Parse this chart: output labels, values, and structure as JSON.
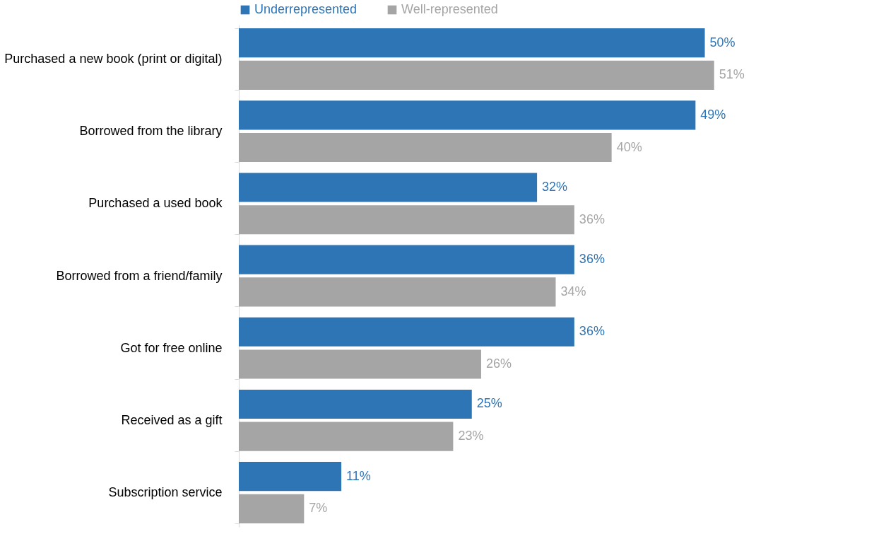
{
  "chart_data": {
    "type": "bar",
    "orientation": "horizontal",
    "legend": "top",
    "categories": [
      "Purchased a new book (print or digital)",
      "Borrowed from the library",
      "Purchased a used book",
      "Borrowed from a friend/family",
      "Got for free online",
      "Received as a gift",
      "Subscription service"
    ],
    "series": [
      {
        "name": "Underrepresented",
        "color": "#2e75b6",
        "values": [
          50,
          49,
          32,
          36,
          36,
          25,
          11
        ],
        "value_labels": [
          "50%",
          "49%",
          "32%",
          "36%",
          "36%",
          "25%",
          "11%"
        ]
      },
      {
        "name": "Well-represented",
        "color": "#a5a5a5",
        "values": [
          51,
          40,
          36,
          34,
          26,
          23,
          7
        ],
        "value_labels": [
          "51%",
          "40%",
          "36%",
          "34%",
          "26%",
          "23%",
          "7%"
        ]
      }
    ]
  }
}
